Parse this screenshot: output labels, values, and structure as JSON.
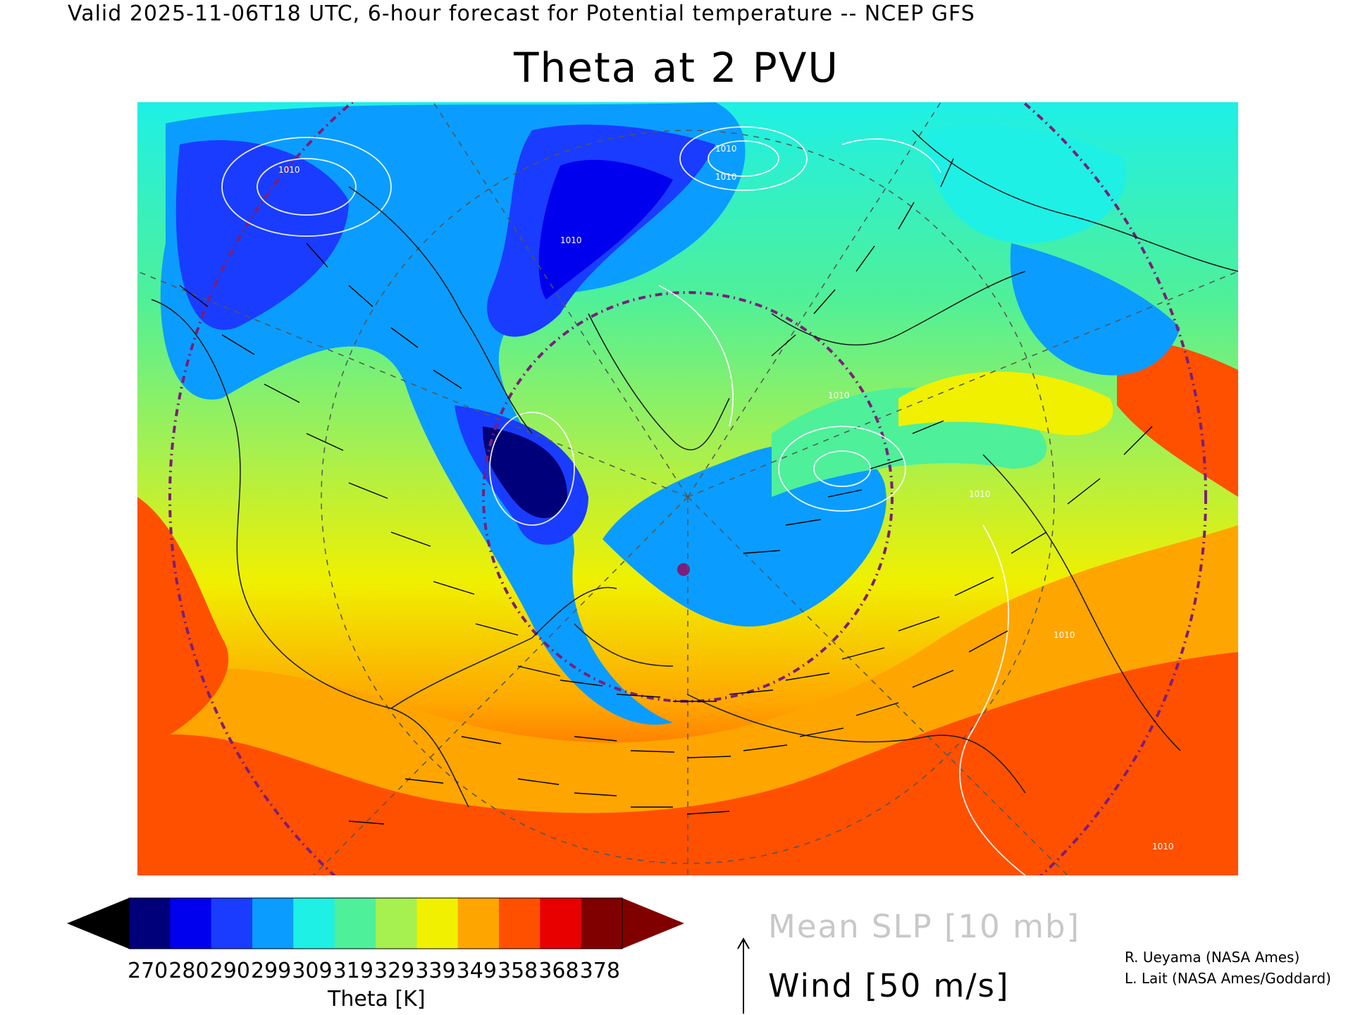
{
  "header": "Valid 2025-11-06T18 UTC, 6-hour forecast for Potential temperature -- NCEP GFS",
  "title": "Theta at 2 PVU",
  "colorbar": {
    "ticks": [
      "270",
      "280",
      "290",
      "299",
      "309",
      "319",
      "329",
      "339",
      "349",
      "358",
      "368",
      "378"
    ],
    "label": "Theta [K]",
    "under_color": "#000000",
    "over_color": "#800000",
    "colors": [
      "#00007a",
      "#0000ee",
      "#1a3cff",
      "#0a9dff",
      "#1ef0e6",
      "#4ef09a",
      "#a6f050",
      "#f0f000",
      "#ffa500",
      "#ff5000",
      "#e80000",
      "#800000"
    ]
  },
  "legend": {
    "slp": "Mean SLP [10 mb]",
    "wind": "Wind [50 m/s]"
  },
  "credits": [
    "R. Ueyama (NASA Ames)",
    "L. Lait (NASA Ames/Goddard)"
  ],
  "map": {
    "contour_labels": [
      "1010",
      "1010",
      "1010",
      "1010",
      "1010",
      "1010",
      "1010",
      "1010"
    ]
  }
}
